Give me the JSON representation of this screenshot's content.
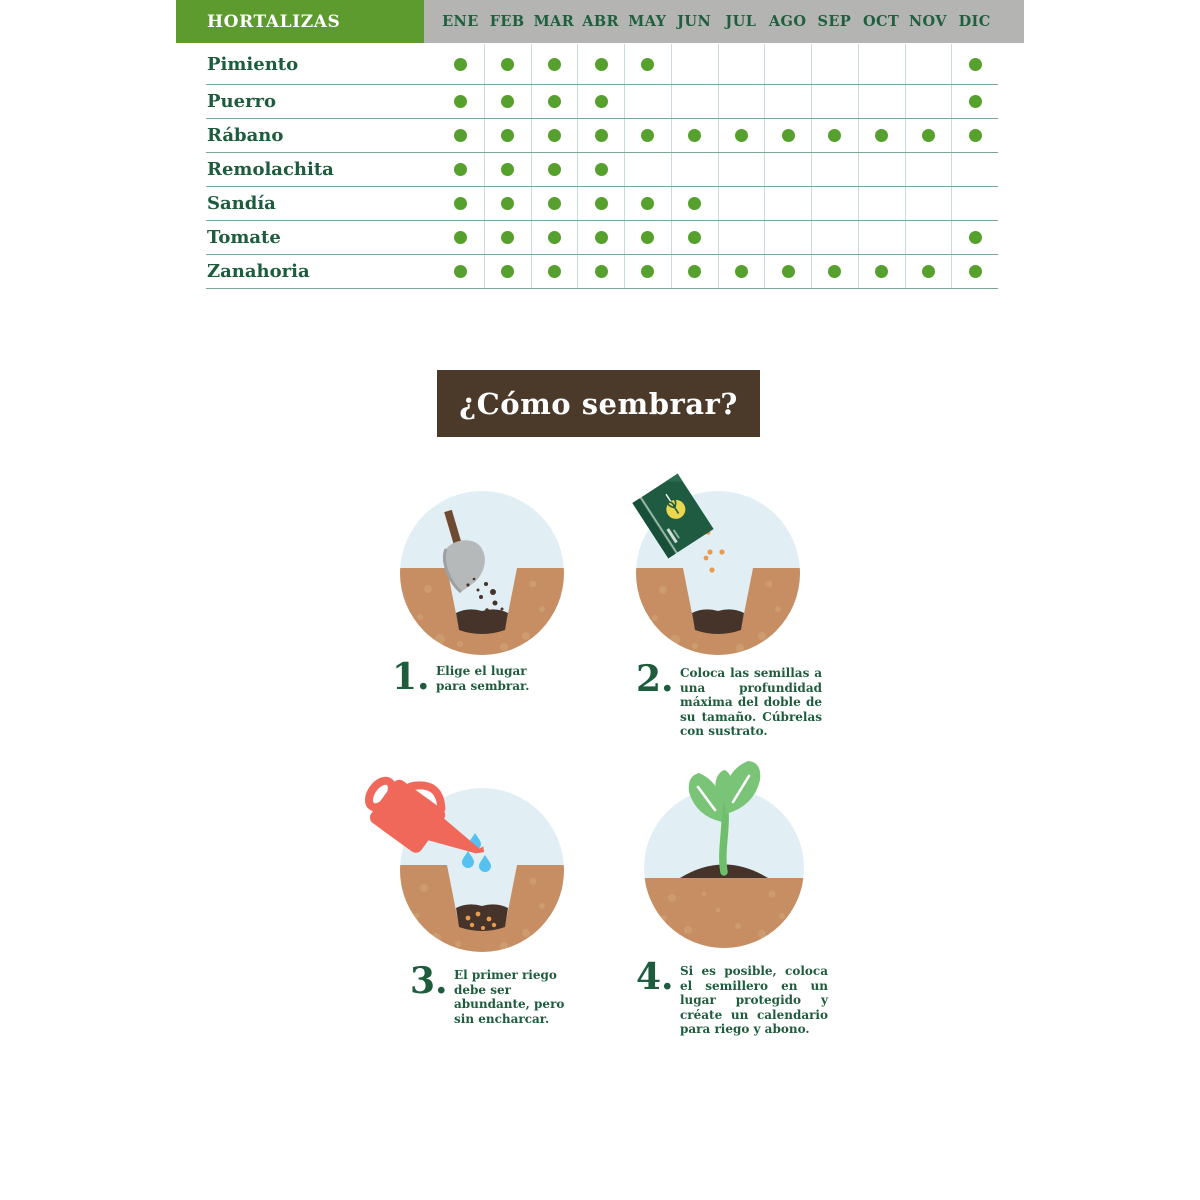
{
  "calendar": {
    "title": "HORTALIZAS",
    "months": [
      "ENE",
      "FEB",
      "MAR",
      "ABR",
      "MAY",
      "JUN",
      "JUL",
      "AGO",
      "SEP",
      "OCT",
      "NOV",
      "DIC"
    ],
    "rows": [
      {
        "label": "Pimiento",
        "months": [
          1,
          1,
          1,
          1,
          1,
          0,
          0,
          0,
          0,
          0,
          0,
          1
        ]
      },
      {
        "label": "Puerro",
        "months": [
          1,
          1,
          1,
          1,
          0,
          0,
          0,
          0,
          0,
          0,
          0,
          1
        ]
      },
      {
        "label": "Rábano",
        "months": [
          1,
          1,
          1,
          1,
          1,
          1,
          1,
          1,
          1,
          1,
          1,
          1
        ]
      },
      {
        "label": "Remolachita",
        "months": [
          1,
          1,
          1,
          1,
          0,
          0,
          0,
          0,
          0,
          0,
          0,
          0
        ]
      },
      {
        "label": "Sandía",
        "months": [
          1,
          1,
          1,
          1,
          1,
          1,
          0,
          0,
          0,
          0,
          0,
          0
        ]
      },
      {
        "label": "Tomate",
        "months": [
          1,
          1,
          1,
          1,
          1,
          1,
          0,
          0,
          0,
          0,
          0,
          1
        ]
      },
      {
        "label": "Zanahoria",
        "months": [
          1,
          1,
          1,
          1,
          1,
          1,
          1,
          1,
          1,
          1,
          1,
          1
        ]
      }
    ]
  },
  "how_to_sow": {
    "title": "¿Cómo sembrar?",
    "steps": [
      {
        "number": "1.",
        "text": "Elige el lugar para sembrar.",
        "icon": "shovel-digging-icon"
      },
      {
        "number": "2.",
        "text": "Coloca las semillas a una profundidad máxima del doble de su tamaño. Cúbrelas con sustrato.",
        "icon": "seed-packet-icon"
      },
      {
        "number": "3.",
        "text": "El primer riego debe ser abundante, pero sin encharcar.",
        "icon": "watering-can-icon"
      },
      {
        "number": "4.",
        "text": "Si es posible, coloca el semillero en un lugar protegido y créate un calendario para riego y abono.",
        "icon": "seedling-icon"
      }
    ]
  },
  "colors": {
    "header_green": "#5d9b2e",
    "header_gray": "#b4b4b2",
    "text_dark_green": "#1d5c3c",
    "dot_green": "#56a02d",
    "grid_horizontal": "#79a89a",
    "grid_vertical": "#c9ddd6",
    "title_brown": "#4b3929",
    "sky_blue": "#e1eff5",
    "soil_brown": "#c68e62",
    "soil_speckle": "#d2a378",
    "dark_soil": "#46342a",
    "seed_orange": "#e99a4d",
    "water_blue": "#55c1f0",
    "can_coral": "#f0685a",
    "leaf_green": "#79c476"
  }
}
